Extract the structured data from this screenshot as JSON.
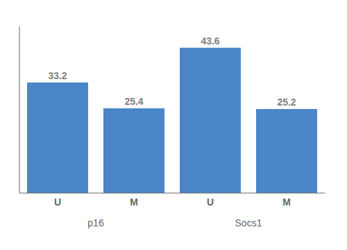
{
  "chart_data": {
    "type": "bar",
    "categories": [
      "U",
      "M"
    ],
    "groups": [
      "p16",
      "Socs1"
    ],
    "values": [
      [
        33.2,
        25.4
      ],
      [
        43.6,
        25.2
      ]
    ],
    "color": "#4a86c8",
    "ylim": [
      0,
      50
    ],
    "data_labels": true,
    "tick_labels": "x",
    "grid": false
  }
}
